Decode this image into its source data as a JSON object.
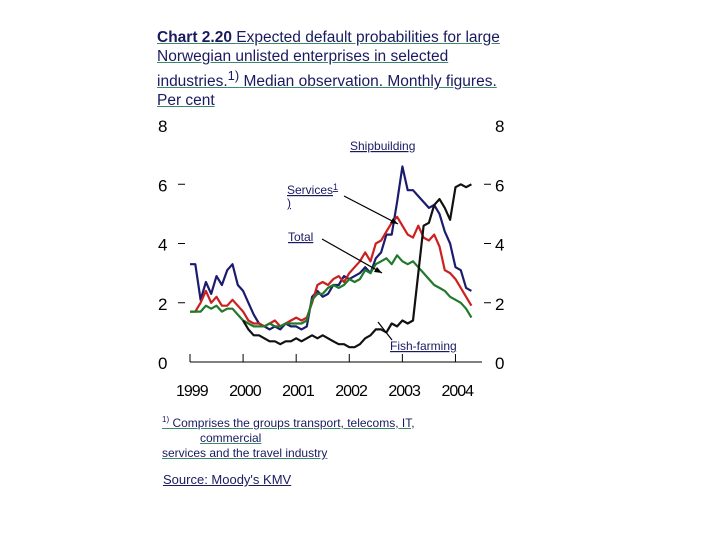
{
  "title": {
    "chart_no": "Chart 2.20",
    "rest": "Expected default probabilities for large Norwegian unlisted enterprises in selected industries.",
    "sup": "1)",
    "tail": "Median observation. Monthly figures. Per cent"
  },
  "footnote": {
    "marker": "1)",
    "line1": "Comprises the groups transport, telecoms, IT,",
    "line2": "commercial",
    "line3": "services and the travel industry"
  },
  "source": "Source: Moody's KMV",
  "colors": {
    "shipbuilding": "#1c1c6e",
    "services": "#cc1f1f",
    "total": "#1f7a2a",
    "fish_farming": "#111111",
    "axis": "#000000"
  },
  "chart_data": {
    "type": "line",
    "title": "Expected default probabilities for large Norwegian unlisted enterprises in selected industries. Median observation. Monthly figures. Per cent",
    "ylim": [
      0,
      8
    ],
    "yticks": [
      0,
      2,
      4,
      6,
      8
    ],
    "yticklabels_left": [
      "0",
      "2",
      "4",
      "6",
      "8"
    ],
    "yticklabels_right": [
      "0",
      "2",
      "4",
      "6",
      "8"
    ],
    "xlim": [
      1999.0,
      2004.5
    ],
    "xticks": [
      1999,
      2000,
      2001,
      2002,
      2003,
      2004
    ],
    "xticklabels": [
      "1999",
      "2000",
      "2001",
      "2002",
      "2003",
      "2004"
    ],
    "annotations": [
      {
        "text": "Shipbuilding",
        "target_series": "Shipbuilding"
      },
      {
        "text": "Services",
        "sup": "1",
        "cont": ")",
        "target_series": "Services"
      },
      {
        "text": "Total",
        "target_series": "Total"
      },
      {
        "text": "Fish-farming",
        "target_series": "Fish-farming"
      }
    ],
    "series": [
      {
        "name": "Shipbuilding",
        "x": [
          1999.0,
          1999.1,
          1999.2,
          1999.3,
          1999.4,
          1999.5,
          1999.6,
          1999.7,
          1999.8,
          1999.9,
          2000.0,
          2000.1,
          2000.2,
          2000.3,
          2000.4,
          2000.5,
          2000.6,
          2000.7,
          2000.8,
          2000.9,
          2001.0,
          2001.1,
          2001.2,
          2001.3,
          2001.4,
          2001.5,
          2001.6,
          2001.7,
          2001.8,
          2001.9,
          2002.0,
          2002.1,
          2002.2,
          2002.3,
          2002.4,
          2002.5,
          2002.6,
          2002.7,
          2002.8,
          2002.9,
          2003.0,
          2003.1,
          2003.2,
          2003.3,
          2003.4,
          2003.5,
          2003.6,
          2003.7,
          2003.8,
          2003.9,
          2004.0,
          2004.1,
          2004.2,
          2004.3
        ],
        "values": [
          3.3,
          3.3,
          2.1,
          2.7,
          2.3,
          2.9,
          2.6,
          3.1,
          3.3,
          2.6,
          2.4,
          2.0,
          1.6,
          1.3,
          1.2,
          1.1,
          1.2,
          1.1,
          1.3,
          1.2,
          1.2,
          1.1,
          1.2,
          2.2,
          2.4,
          2.2,
          2.3,
          2.6,
          2.6,
          2.9,
          2.8,
          2.9,
          3.0,
          3.2,
          3.0,
          3.5,
          3.7,
          4.3,
          4.3,
          5.4,
          6.6,
          5.8,
          5.8,
          5.6,
          5.4,
          5.2,
          5.3,
          5.0,
          4.4,
          4.0,
          3.2,
          3.1,
          2.5,
          2.4
        ]
      },
      {
        "name": "Services",
        "x": [
          1999.0,
          1999.1,
          1999.2,
          1999.3,
          1999.4,
          1999.5,
          1999.6,
          1999.7,
          1999.8,
          1999.9,
          2000.0,
          2000.1,
          2000.2,
          2000.3,
          2000.4,
          2000.5,
          2000.6,
          2000.7,
          2000.8,
          2000.9,
          2001.0,
          2001.1,
          2001.2,
          2001.3,
          2001.4,
          2001.5,
          2001.6,
          2001.7,
          2001.8,
          2001.9,
          2002.0,
          2002.1,
          2002.2,
          2002.3,
          2002.4,
          2002.5,
          2002.6,
          2002.7,
          2002.8,
          2002.9,
          2003.0,
          2003.1,
          2003.2,
          2003.3,
          2003.4,
          2003.5,
          2003.6,
          2003.7,
          2003.8,
          2003.9,
          2004.0,
          2004.1,
          2004.2,
          2004.3
        ],
        "values": [
          1.7,
          1.7,
          2.0,
          2.4,
          2.0,
          2.2,
          1.9,
          1.9,
          2.1,
          1.9,
          1.7,
          1.4,
          1.3,
          1.3,
          1.2,
          1.3,
          1.4,
          1.2,
          1.3,
          1.4,
          1.5,
          1.4,
          1.5,
          2.0,
          2.6,
          2.7,
          2.6,
          2.8,
          2.9,
          2.7,
          3.0,
          3.2,
          3.4,
          3.7,
          3.4,
          4.0,
          4.1,
          4.4,
          4.7,
          4.9,
          4.6,
          4.3,
          4.2,
          4.6,
          4.2,
          4.1,
          4.3,
          3.9,
          3.1,
          3.0,
          2.8,
          2.5,
          2.2,
          1.9
        ]
      },
      {
        "name": "Total",
        "x": [
          1999.0,
          1999.1,
          1999.2,
          1999.3,
          1999.4,
          1999.5,
          1999.6,
          1999.7,
          1999.8,
          1999.9,
          2000.0,
          2000.1,
          2000.2,
          2000.3,
          2000.4,
          2000.5,
          2000.6,
          2000.7,
          2000.8,
          2000.9,
          2001.0,
          2001.1,
          2001.2,
          2001.3,
          2001.4,
          2001.5,
          2001.6,
          2001.7,
          2001.8,
          2001.9,
          2002.0,
          2002.1,
          2002.2,
          2002.3,
          2002.4,
          2002.5,
          2002.6,
          2002.7,
          2002.8,
          2002.9,
          2003.0,
          2003.1,
          2003.2,
          2003.3,
          2003.4,
          2003.5,
          2003.6,
          2003.7,
          2003.8,
          2003.9,
          2004.0,
          2004.1,
          2004.2,
          2004.3
        ],
        "values": [
          1.7,
          1.7,
          1.7,
          1.9,
          1.8,
          1.9,
          1.7,
          1.8,
          1.8,
          1.6,
          1.4,
          1.3,
          1.2,
          1.2,
          1.2,
          1.3,
          1.2,
          1.2,
          1.3,
          1.3,
          1.3,
          1.3,
          1.4,
          2.1,
          2.3,
          2.3,
          2.5,
          2.6,
          2.5,
          2.6,
          2.8,
          2.7,
          2.8,
          3.1,
          3.0,
          3.3,
          3.4,
          3.5,
          3.3,
          3.6,
          3.4,
          3.3,
          3.4,
          3.2,
          3.0,
          2.8,
          2.6,
          2.5,
          2.4,
          2.2,
          2.1,
          2.0,
          1.8,
          1.5
        ]
      },
      {
        "name": "Fish-farming",
        "x": [
          2000.0,
          2000.1,
          2000.2,
          2000.3,
          2000.4,
          2000.5,
          2000.6,
          2000.7,
          2000.8,
          2000.9,
          2001.0,
          2001.1,
          2001.2,
          2001.3,
          2001.4,
          2001.5,
          2001.6,
          2001.7,
          2001.8,
          2001.9,
          2002.0,
          2002.1,
          2002.2,
          2002.3,
          2002.4,
          2002.5,
          2002.6,
          2002.7,
          2002.8,
          2002.9,
          2003.0,
          2003.1,
          2003.2,
          2003.3,
          2003.4,
          2003.5,
          2003.6,
          2003.7,
          2003.8,
          2003.9,
          2004.0,
          2004.1,
          2004.2,
          2004.3
        ],
        "values": [
          1.4,
          1.1,
          0.9,
          0.9,
          0.8,
          0.7,
          0.7,
          0.6,
          0.7,
          0.7,
          0.8,
          0.7,
          0.8,
          0.9,
          0.8,
          0.9,
          0.8,
          0.7,
          0.6,
          0.6,
          0.5,
          0.5,
          0.6,
          0.8,
          0.9,
          1.1,
          1.1,
          1.0,
          1.3,
          1.2,
          1.4,
          1.3,
          1.4,
          3.0,
          4.6,
          4.7,
          5.3,
          5.5,
          5.2,
          4.8,
          5.9,
          6.0,
          5.9,
          6.0
        ]
      }
    ]
  }
}
